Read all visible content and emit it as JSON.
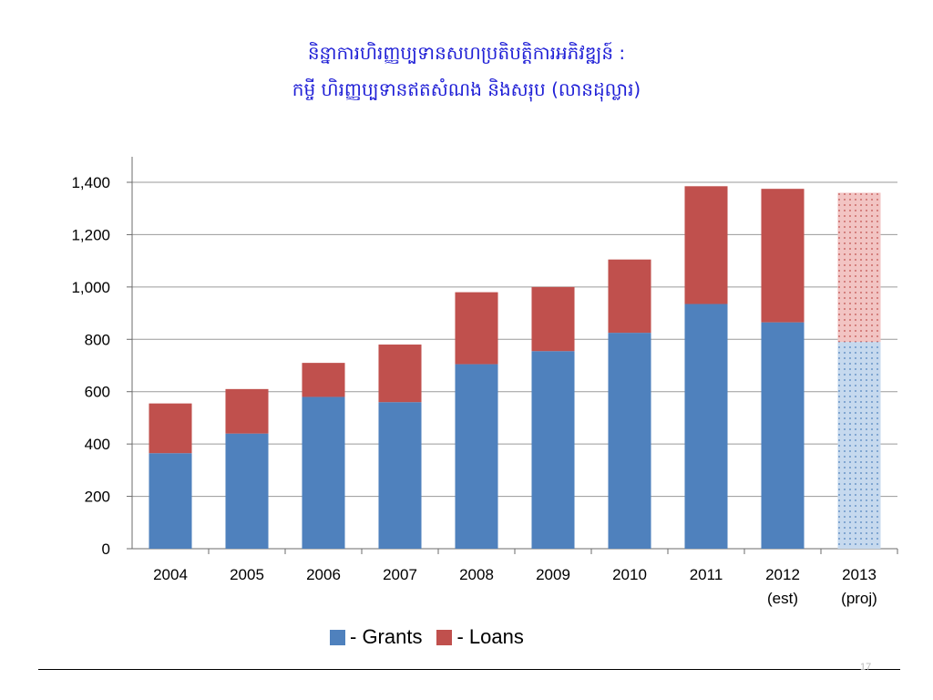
{
  "slide": {
    "title_line1": "និន្នាការហិរញ្ញប្បទានសហប្រតិបត្តិការអភិវឌ្ឍន៍ :",
    "title_line2": "កម្ចី ហិរញ្ញប្បទានឥតសំណង និងសរុប (លានដុល្លារ)",
    "page_number": "17"
  },
  "colors": {
    "grants": "#4f81bd",
    "loans": "#c0504d",
    "projected_grants": "#c6d9ee",
    "projected_loans": "#f2c4c3",
    "title": "#1f1fd6"
  },
  "chart_data": {
    "type": "bar",
    "stacked": true,
    "title": "និន្នាការហិរញ្ញប្បទានសហប្រតិបត្តិការអភិវឌ្ឍន៍ : កម្ចី ហិរញ្ញប្បទានឥតសំណង និងសរុប (លានដុល្លារ)",
    "categories": [
      "2004",
      "2005",
      "2006",
      "2007",
      "2008",
      "2009",
      "2010",
      "2011",
      "2012",
      "2013"
    ],
    "category_sublabels": [
      "",
      "",
      "",
      "",
      "",
      "",
      "",
      "",
      "(est)",
      "(proj)"
    ],
    "series": [
      {
        "name": "- Grants",
        "values": [
          365,
          440,
          580,
          560,
          705,
          755,
          825,
          935,
          865,
          790
        ]
      },
      {
        "name": "- Loans",
        "values": [
          190,
          170,
          130,
          220,
          275,
          245,
          280,
          450,
          510,
          570
        ]
      }
    ],
    "projected_categories": [
      "2013"
    ],
    "ylim": [
      0,
      1400
    ],
    "yticks": [
      0,
      200,
      400,
      600,
      800,
      1000,
      1200,
      1400
    ],
    "ytick_labels": [
      "0",
      "200",
      "400",
      "600",
      "800",
      "1,000",
      "1,200",
      "1,400"
    ],
    "grid": true,
    "legend_position": "bottom"
  }
}
